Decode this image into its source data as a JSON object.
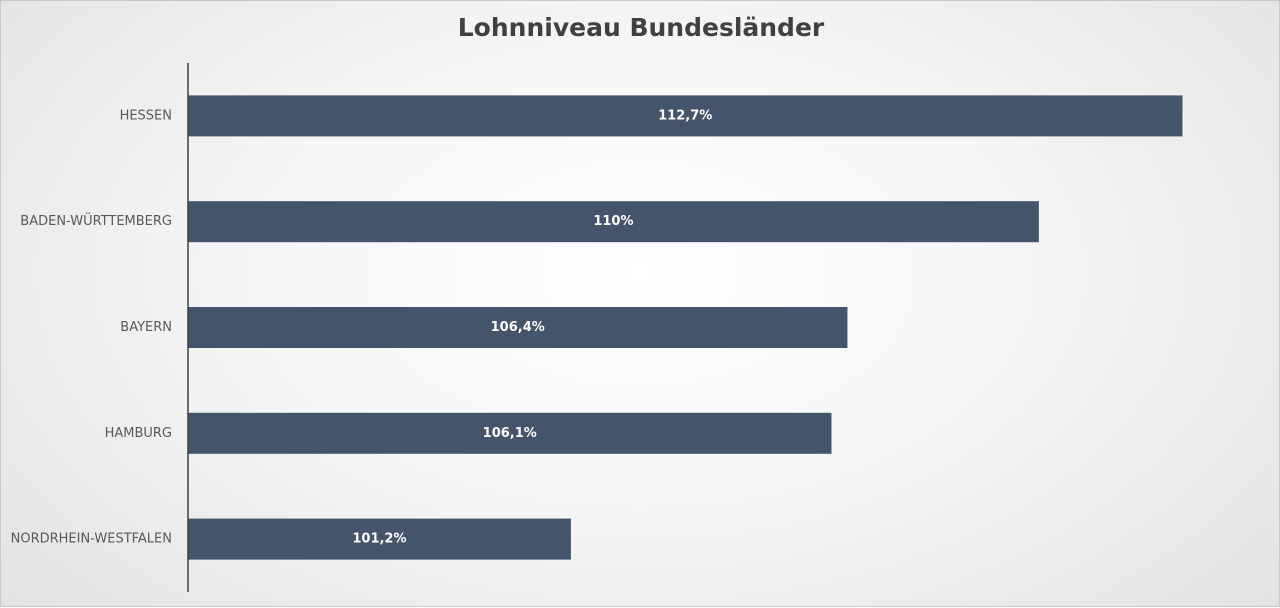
{
  "chart_data": {
    "type": "bar",
    "orientation": "horizontal",
    "title": "Lohnniveau Bundesländer",
    "categories": [
      "HESSEN",
      "BADEN-WÜRTTEMBERG",
      "BAYERN",
      "HAMBURG",
      "NORDRHEIN-WESTFALEN"
    ],
    "values": [
      112.7,
      110,
      106.4,
      106.1,
      101.2
    ],
    "data_labels": [
      "112,7%",
      "110%",
      "106,4%",
      "106,1%",
      "101,2%"
    ],
    "xlim": [
      94,
      113.5
    ],
    "grid": false,
    "legend": "none",
    "bar_color": "#44546a",
    "axis_color": "#404040",
    "label_color": "#595959"
  }
}
